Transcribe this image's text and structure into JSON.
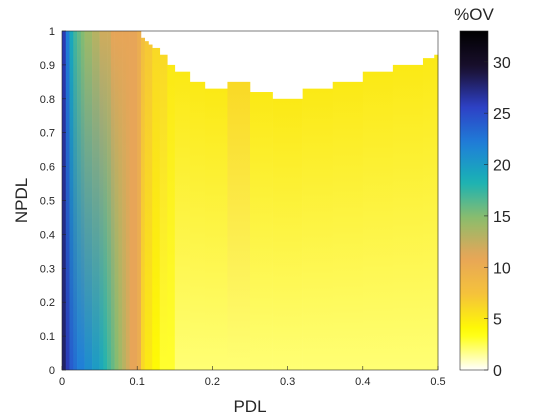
{
  "chart_data": {
    "type": "heatmap",
    "title": "",
    "xlabel": "PDL",
    "ylabel": "NPDL",
    "colorbar_title": "%OV",
    "xlim": [
      0,
      0.5
    ],
    "ylim": [
      0,
      1
    ],
    "clim": [
      0,
      33
    ],
    "x_ticks": [
      0,
      0.1,
      0.2,
      0.3,
      0.4,
      0.5
    ],
    "x_tick_labels": [
      "0",
      "0.1",
      "0.2",
      "0.3",
      "0.4",
      "0.5"
    ],
    "y_ticks": [
      0,
      0.1,
      0.2,
      0.3,
      0.4,
      0.5,
      0.6,
      0.7,
      0.8,
      0.9,
      1
    ],
    "y_tick_labels": [
      "0",
      "0.1",
      "0.2",
      "0.3",
      "0.4",
      "0.5",
      "0.6",
      "0.7",
      "0.8",
      "0.9",
      "1"
    ],
    "colorbar_ticks": [
      0,
      5,
      10,
      15,
      20,
      25,
      30
    ],
    "colorbar_tick_labels": [
      "0",
      "5",
      "10",
      "15",
      "20",
      "25",
      "30"
    ],
    "colormap": [
      "#ffffff",
      "#ffff00",
      "#f5c33a",
      "#e7a558",
      "#8fbd6a",
      "#19b2b5",
      "#1f7fd8",
      "#2d3fc5",
      "#1a1030",
      "#000000"
    ],
    "x_grid_step": 0.005,
    "columns": [
      {
        "x": 0.0,
        "top": 1.0,
        "bottom_value": 28,
        "top_value": 26
      },
      {
        "x": 0.005,
        "top": 1.0,
        "bottom_value": 26,
        "top_value": 22
      },
      {
        "x": 0.01,
        "top": 1.0,
        "bottom_value": 24,
        "top_value": 19
      },
      {
        "x": 0.015,
        "top": 1.0,
        "bottom_value": 23,
        "top_value": 17
      },
      {
        "x": 0.02,
        "top": 1.0,
        "bottom_value": 22,
        "top_value": 16
      },
      {
        "x": 0.025,
        "top": 1.0,
        "bottom_value": 22,
        "top_value": 15
      },
      {
        "x": 0.03,
        "top": 1.0,
        "bottom_value": 21,
        "top_value": 14
      },
      {
        "x": 0.035,
        "top": 1.0,
        "bottom_value": 21,
        "top_value": 14
      },
      {
        "x": 0.04,
        "top": 1.0,
        "bottom_value": 20,
        "top_value": 13
      },
      {
        "x": 0.045,
        "top": 1.0,
        "bottom_value": 20,
        "top_value": 13
      },
      {
        "x": 0.05,
        "top": 1.0,
        "bottom_value": 19,
        "top_value": 12
      },
      {
        "x": 0.055,
        "top": 1.0,
        "bottom_value": 18,
        "top_value": 12
      },
      {
        "x": 0.06,
        "top": 1.0,
        "bottom_value": 17,
        "top_value": 12
      },
      {
        "x": 0.065,
        "top": 1.0,
        "bottom_value": 16,
        "top_value": 11
      },
      {
        "x": 0.07,
        "top": 1.0,
        "bottom_value": 15,
        "top_value": 11
      },
      {
        "x": 0.075,
        "top": 1.0,
        "bottom_value": 14,
        "top_value": 11
      },
      {
        "x": 0.08,
        "top": 1.0,
        "bottom_value": 13,
        "top_value": 11
      },
      {
        "x": 0.085,
        "top": 1.0,
        "bottom_value": 12,
        "top_value": 11
      },
      {
        "x": 0.09,
        "top": 1.0,
        "bottom_value": 11,
        "top_value": 11
      },
      {
        "x": 0.095,
        "top": 1.0,
        "bottom_value": 11,
        "top_value": 11
      },
      {
        "x": 0.1,
        "top": 1.0,
        "bottom_value": 10,
        "top_value": 10
      },
      {
        "x": 0.105,
        "top": 0.98,
        "bottom_value": 6,
        "top_value": 8
      },
      {
        "x": 0.11,
        "top": 0.97,
        "bottom_value": 5,
        "top_value": 7
      },
      {
        "x": 0.115,
        "top": 0.96,
        "bottom_value": 5,
        "top_value": 7
      },
      {
        "x": 0.12,
        "top": 0.95,
        "bottom_value": 4,
        "top_value": 6
      },
      {
        "x": 0.13,
        "top": 0.93,
        "bottom_value": 3,
        "top_value": 6
      },
      {
        "x": 0.14,
        "top": 0.9,
        "bottom_value": 3,
        "top_value": 5
      },
      {
        "x": 0.15,
        "top": 0.88,
        "bottom_value": 2,
        "top_value": 5
      },
      {
        "x": 0.17,
        "top": 0.85,
        "bottom_value": 2,
        "top_value": 5
      },
      {
        "x": 0.19,
        "top": 0.83,
        "bottom_value": 2,
        "top_value": 5
      },
      {
        "x": 0.22,
        "top": 0.85,
        "bottom_value": 2,
        "top_value": 6
      },
      {
        "x": 0.25,
        "top": 0.82,
        "bottom_value": 2,
        "top_value": 5
      },
      {
        "x": 0.28,
        "top": 0.8,
        "bottom_value": 2,
        "top_value": 5
      },
      {
        "x": 0.32,
        "top": 0.83,
        "bottom_value": 2,
        "top_value": 5
      },
      {
        "x": 0.36,
        "top": 0.85,
        "bottom_value": 2,
        "top_value": 5
      },
      {
        "x": 0.4,
        "top": 0.88,
        "bottom_value": 2,
        "top_value": 5
      },
      {
        "x": 0.44,
        "top": 0.9,
        "bottom_value": 2,
        "top_value": 5
      },
      {
        "x": 0.48,
        "top": 0.92,
        "bottom_value": 2,
        "top_value": 5
      },
      {
        "x": 0.495,
        "top": 0.93,
        "bottom_value": 2,
        "top_value": 5
      }
    ],
    "grid": false,
    "colorbar_position": "right"
  }
}
